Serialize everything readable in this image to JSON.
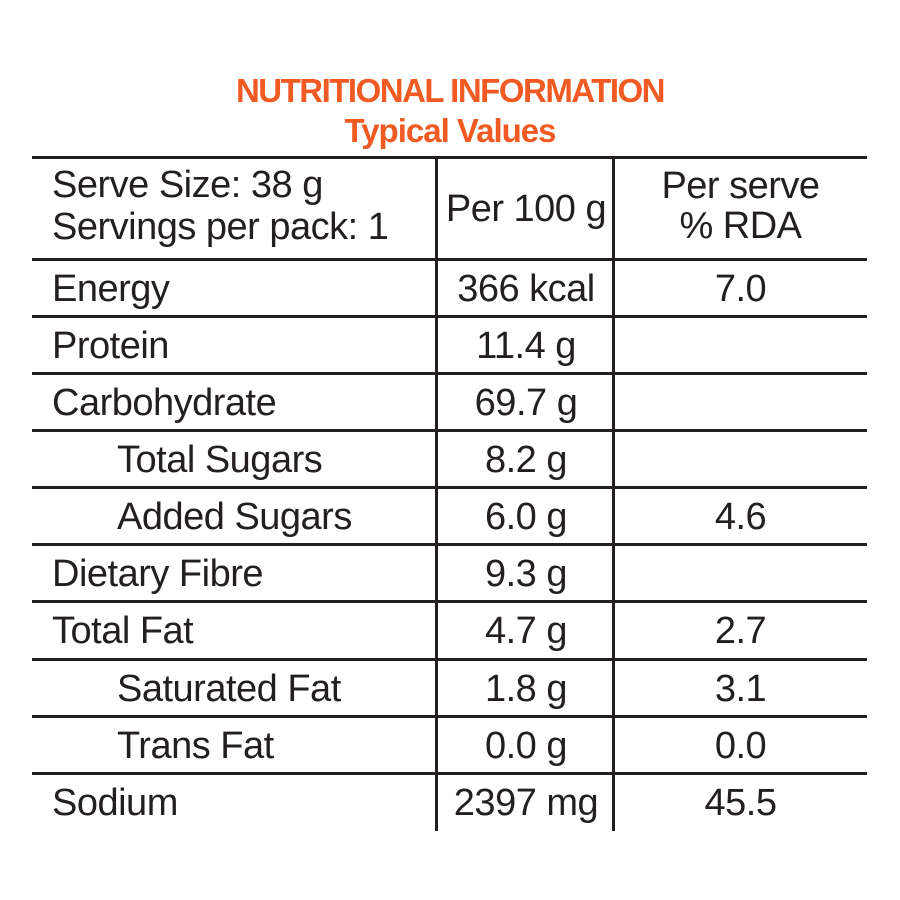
{
  "title": "NUTRITIONAL INFORMATION",
  "subtitle": "Typical Values",
  "accent_color": "#f15a22",
  "header": {
    "serve_size": "Serve Size: 38 g",
    "servings_per_pack": "Servings per pack: 1",
    "per_100g": "Per 100 g",
    "per_serve_line1": "Per serve",
    "per_serve_line2": "% RDA"
  },
  "rows": [
    {
      "nutrient": "Energy",
      "per_100g": "366 kcal",
      "rda": "7.0"
    },
    {
      "nutrient": "Protein",
      "per_100g": "11.4 g",
      "rda": ""
    },
    {
      "nutrient": "Carbohydrate",
      "per_100g": "69.7 g",
      "rda": ""
    },
    {
      "nutrient": "Total Sugars",
      "per_100g": "8.2 g",
      "rda": ""
    },
    {
      "nutrient": "Added Sugars",
      "per_100g": "6.0 g",
      "rda": "4.6"
    },
    {
      "nutrient": "Dietary Fibre",
      "per_100g": "9.3 g",
      "rda": ""
    },
    {
      "nutrient": "Total Fat",
      "per_100g": "4.7 g",
      "rda": "2.7"
    },
    {
      "nutrient": "Saturated Fat",
      "per_100g": "1.8 g",
      "rda": "3.1"
    },
    {
      "nutrient": "Trans Fat",
      "per_100g": "0.0 g",
      "rda": "0.0"
    },
    {
      "nutrient": "Sodium",
      "per_100g": "2397 mg",
      "rda": "45.5"
    }
  ]
}
